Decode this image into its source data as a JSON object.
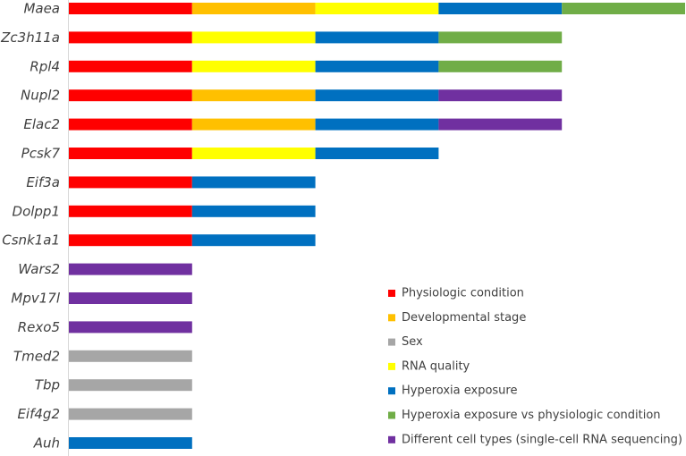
{
  "chart_data": {
    "type": "bar",
    "orientation": "horizontal",
    "stacked": true,
    "title": "",
    "xlabel": "",
    "ylabel": "",
    "grid": false,
    "legend_position": "bottom-right",
    "categories": [
      "Maea",
      "Zc3h11a",
      "Rpl4",
      "Nupl2",
      "Elac2",
      "Pcsk7",
      "Eif3a",
      "Dolpp1",
      "Csnk1a1",
      "Wars2",
      "Mpv17l",
      "Rexo5",
      "Tmed2",
      "Tbp",
      "Eif4g2",
      "Auh"
    ],
    "series": [
      {
        "name": "Physiologic condition",
        "color": "#ff0000",
        "values": [
          1,
          1,
          1,
          1,
          1,
          1,
          1,
          1,
          1,
          0,
          0,
          0,
          0,
          0,
          0,
          0
        ]
      },
      {
        "name": "Developmental stage",
        "color": "#ffc000",
        "values": [
          1,
          0,
          0,
          1,
          1,
          0,
          0,
          0,
          0,
          0,
          0,
          0,
          0,
          0,
          0,
          0
        ]
      },
      {
        "name": "Sex",
        "color": "#a6a6a6",
        "values": [
          0,
          0,
          0,
          0,
          0,
          0,
          0,
          0,
          0,
          0,
          0,
          0,
          1,
          1,
          1,
          0
        ]
      },
      {
        "name": "RNA quality",
        "color": "#ffff00",
        "values": [
          1,
          1,
          1,
          0,
          0,
          1,
          0,
          0,
          0,
          0,
          0,
          0,
          0,
          0,
          0,
          0
        ]
      },
      {
        "name": "Hyperoxia exposure",
        "color": "#0070c0",
        "values": [
          1,
          1,
          1,
          1,
          1,
          1,
          1,
          1,
          1,
          0,
          0,
          0,
          0,
          0,
          0,
          1
        ]
      },
      {
        "name": "Hyperoxia exposure vs physiologic condition",
        "color": "#70ad47",
        "values": [
          1,
          1,
          1,
          0,
          0,
          0,
          0,
          0,
          0,
          0,
          0,
          0,
          0,
          0,
          0,
          0
        ]
      },
      {
        "name": "Different cell types (single-cell RNA sequencing)",
        "color": "#7030a0",
        "values": [
          0,
          0,
          0,
          1,
          1,
          0,
          0,
          0,
          0,
          1,
          1,
          1,
          0,
          0,
          0,
          0
        ]
      }
    ],
    "xlim": [
      0,
      5
    ]
  }
}
